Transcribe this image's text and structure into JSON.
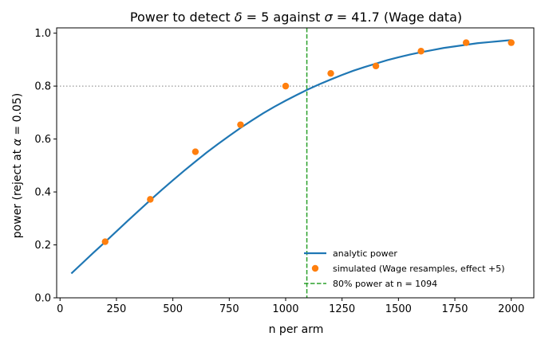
{
  "chart_data": {
    "type": "line",
    "title": "Power to detect δ = 5 against σ = 41.7 (Wage data)",
    "title_parts": [
      "Power to detect ",
      "δ",
      " = 5 against ",
      "σ",
      " = 41.7 (Wage data)"
    ],
    "xlabel": "n per arm",
    "ylabel": "power (reject at α = 0.05)",
    "ylabel_parts": [
      "power (reject at ",
      "α",
      " = 0.05)"
    ],
    "xlim": [
      -15,
      2100
    ],
    "ylim": [
      0,
      1.02
    ],
    "xticks": [
      0,
      250,
      500,
      750,
      1000,
      1250,
      1500,
      1750,
      2000
    ],
    "yticks": [
      0.0,
      0.2,
      0.4,
      0.6,
      0.8,
      1.0
    ],
    "xtick_labels": [
      "0",
      "250",
      "500",
      "750",
      "1000",
      "1250",
      "1500",
      "1750",
      "2000"
    ],
    "ytick_labels": [
      "0.0",
      "0.2",
      "0.4",
      "0.6",
      "0.8",
      "1.0"
    ],
    "grid": false,
    "legend_position": "lower-right",
    "colors": {
      "analytic": "#1f77b4",
      "simulated": "#ff7f0e",
      "threshold": "#2ca02c",
      "reference": "#808080"
    },
    "series": [
      {
        "name": "analytic power",
        "kind": "line",
        "x": [
          50,
          100,
          150,
          200,
          250,
          300,
          350,
          400,
          450,
          500,
          550,
          600,
          650,
          700,
          750,
          800,
          850,
          900,
          950,
          1000,
          1050,
          1100,
          1150,
          1200,
          1250,
          1300,
          1350,
          1400,
          1450,
          1500,
          1550,
          1600,
          1650,
          1700,
          1750,
          1800,
          1850,
          1900,
          1950,
          2000
        ],
        "y": [
          0.092,
          0.132,
          0.172,
          0.211,
          0.251,
          0.291,
          0.33,
          0.369,
          0.407,
          0.444,
          0.48,
          0.515,
          0.549,
          0.581,
          0.612,
          0.642,
          0.67,
          0.697,
          0.722,
          0.745,
          0.767,
          0.788,
          0.807,
          0.825,
          0.842,
          0.858,
          0.872,
          0.885,
          0.898,
          0.909,
          0.919,
          0.928,
          0.936,
          0.944,
          0.95,
          0.956,
          0.962,
          0.966,
          0.97,
          0.974
        ]
      },
      {
        "name": "simulated (Wage resamples, effect +5)",
        "kind": "scatter",
        "x": [
          200,
          400,
          600,
          800,
          1000,
          1200,
          1400,
          1600,
          1800,
          2000
        ],
        "y": [
          0.212,
          0.372,
          0.552,
          0.654,
          0.8,
          0.848,
          0.876,
          0.932,
          0.964,
          0.964
        ]
      }
    ],
    "reference_lines": [
      {
        "orientation": "horizontal",
        "value": 0.8,
        "style": "dotted"
      },
      {
        "orientation": "vertical",
        "value": 1094,
        "style": "dashed",
        "name": "80% power at n = 1094"
      }
    ]
  }
}
